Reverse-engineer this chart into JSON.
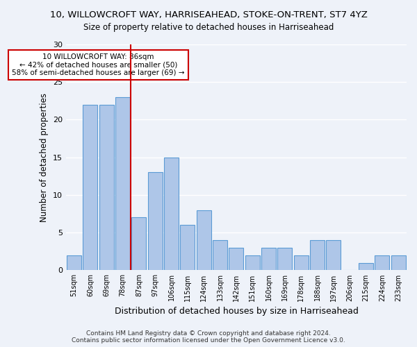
{
  "title1": "10, WILLOWCROFT WAY, HARRISEAHEAD, STOKE-ON-TRENT, ST7 4YZ",
  "title2": "Size of property relative to detached houses in Harriseahead",
  "xlabel": "Distribution of detached houses by size in Harriseahead",
  "ylabel": "Number of detached properties",
  "categories": [
    "51sqm",
    "60sqm",
    "69sqm",
    "78sqm",
    "87sqm",
    "97sqm",
    "106sqm",
    "115sqm",
    "124sqm",
    "133sqm",
    "142sqm",
    "151sqm",
    "160sqm",
    "169sqm",
    "178sqm",
    "188sqm",
    "197sqm",
    "206sqm",
    "215sqm",
    "224sqm",
    "233sqm"
  ],
  "values": [
    2,
    22,
    22,
    23,
    7,
    13,
    15,
    6,
    8,
    4,
    3,
    2,
    3,
    3,
    2,
    4,
    4,
    0,
    1,
    2,
    2
  ],
  "bar_color": "#aec6e8",
  "bar_edge_color": "#5b9bd5",
  "annotation_text": "10 WILLOWCROFT WAY: 86sqm\n← 42% of detached houses are smaller (50)\n58% of semi-detached houses are larger (69) →",
  "annotation_box_color": "#ffffff",
  "annotation_box_edge": "#cc0000",
  "vline_color": "#cc0000",
  "ylim": [
    0,
    30
  ],
  "yticks": [
    0,
    5,
    10,
    15,
    20,
    25,
    30
  ],
  "footer": "Contains HM Land Registry data © Crown copyright and database right 2024.\nContains public sector information licensed under the Open Government Licence v3.0.",
  "background_color": "#eef2f9",
  "grid_color": "#ffffff"
}
